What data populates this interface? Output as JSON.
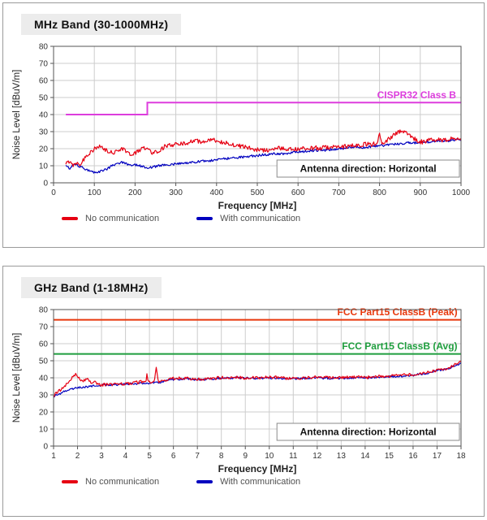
{
  "page": {
    "background": "#ffffff"
  },
  "chart_data": [
    {
      "type": "line",
      "title": "MHz Band (30-1000MHz)",
      "xlabel": "Frequency [MHz]",
      "ylabel": "Noise Level [dBuV/m]",
      "xlim": [
        0,
        1000
      ],
      "ylim": [
        0,
        80
      ],
      "xticks": [
        0,
        100,
        200,
        300,
        400,
        500,
        600,
        700,
        800,
        900,
        1000
      ],
      "yticks": [
        0,
        10,
        20,
        30,
        40,
        50,
        60,
        70,
        80
      ],
      "grid": true,
      "annotation": "Antenna direction: Horizontal",
      "limit_lines": [
        {
          "name": "CISPR32 Class B",
          "color": "#dd3ddd",
          "points": [
            [
              30,
              40
            ],
            [
              230,
              40
            ],
            [
              230,
              47
            ],
            [
              1000,
              47
            ]
          ],
          "label": {
            "text": "CISPR32 Class B",
            "x": 988,
            "y": 49.6,
            "anchor": "end"
          }
        }
      ],
      "series": [
        {
          "name": "No communication",
          "color": "#e60012",
          "noise": 1.3,
          "keypoints": [
            [
              30,
              11
            ],
            [
              40,
              13
            ],
            [
              48,
              10.5
            ],
            [
              55,
              12
            ],
            [
              65,
              11
            ],
            [
              75,
              14
            ],
            [
              85,
              17
            ],
            [
              95,
              19
            ],
            [
              105,
              20.5
            ],
            [
              115,
              21
            ],
            [
              125,
              19.5
            ],
            [
              135,
              18
            ],
            [
              145,
              17.5
            ],
            [
              155,
              19
            ],
            [
              165,
              20
            ],
            [
              175,
              19.5
            ],
            [
              185,
              17
            ],
            [
              195,
              16.5
            ],
            [
              205,
              18
            ],
            [
              215,
              20
            ],
            [
              225,
              20.5
            ],
            [
              235,
              19
            ],
            [
              245,
              17.5
            ],
            [
              255,
              18.5
            ],
            [
              265,
              20
            ],
            [
              275,
              21.5
            ],
            [
              290,
              22
            ],
            [
              305,
              22.5
            ],
            [
              320,
              23
            ],
            [
              335,
              24
            ],
            [
              350,
              24.5
            ],
            [
              365,
              24
            ],
            [
              380,
              24.5
            ],
            [
              395,
              25
            ],
            [
              410,
              24
            ],
            [
              425,
              23.5
            ],
            [
              440,
              22.5
            ],
            [
              455,
              21.5
            ],
            [
              470,
              21
            ],
            [
              485,
              20
            ],
            [
              500,
              19.5
            ],
            [
              515,
              19
            ],
            [
              530,
              19
            ],
            [
              548,
              19.5
            ],
            [
              553,
              22.5
            ],
            [
              558,
              20
            ],
            [
              570,
              19.5
            ],
            [
              585,
              19.5
            ],
            [
              600,
              20
            ],
            [
              620,
              20
            ],
            [
              640,
              20.5
            ],
            [
              660,
              20.5
            ],
            [
              680,
              21
            ],
            [
              700,
              21
            ],
            [
              720,
              21.5
            ],
            [
              740,
              22
            ],
            [
              760,
              22.5
            ],
            [
              780,
              22.5
            ],
            [
              795,
              23
            ],
            [
              800,
              29.5
            ],
            [
              805,
              23.5
            ],
            [
              815,
              24
            ],
            [
              825,
              26
            ],
            [
              835,
              28
            ],
            [
              845,
              29.5
            ],
            [
              855,
              30
            ],
            [
              865,
              29.5
            ],
            [
              875,
              28
            ],
            [
              885,
              26
            ],
            [
              895,
              24.5
            ],
            [
              905,
              24
            ],
            [
              915,
              24.5
            ],
            [
              925,
              25
            ],
            [
              940,
              25
            ],
            [
              955,
              25
            ],
            [
              970,
              25.5
            ],
            [
              985,
              26
            ],
            [
              1000,
              26
            ]
          ]
        },
        {
          "name": "With communication",
          "color": "#0000bf",
          "noise": 0.7,
          "keypoints": [
            [
              30,
              10
            ],
            [
              40,
              8.5
            ],
            [
              50,
              11
            ],
            [
              60,
              10
            ],
            [
              70,
              9
            ],
            [
              80,
              8
            ],
            [
              90,
              7
            ],
            [
              100,
              6
            ],
            [
              110,
              6
            ],
            [
              120,
              7
            ],
            [
              130,
              8
            ],
            [
              140,
              9.5
            ],
            [
              150,
              10.5
            ],
            [
              160,
              11.5
            ],
            [
              170,
              12
            ],
            [
              180,
              11
            ],
            [
              190,
              10.5
            ],
            [
              200,
              10.5
            ],
            [
              210,
              10
            ],
            [
              220,
              9.5
            ],
            [
              230,
              9
            ],
            [
              240,
              9
            ],
            [
              250,
              9.5
            ],
            [
              260,
              10
            ],
            [
              280,
              10.5
            ],
            [
              300,
              11
            ],
            [
              320,
              11.5
            ],
            [
              340,
              12
            ],
            [
              360,
              12.5
            ],
            [
              380,
              13
            ],
            [
              400,
              13.5
            ],
            [
              420,
              14
            ],
            [
              440,
              14.5
            ],
            [
              460,
              15
            ],
            [
              480,
              15.5
            ],
            [
              500,
              16
            ],
            [
              520,
              16.5
            ],
            [
              540,
              17
            ],
            [
              560,
              17
            ],
            [
              580,
              17.5
            ],
            [
              600,
              18
            ],
            [
              620,
              18.5
            ],
            [
              640,
              19
            ],
            [
              660,
              19
            ],
            [
              680,
              19.5
            ],
            [
              700,
              20
            ],
            [
              720,
              20.5
            ],
            [
              740,
              21
            ],
            [
              755,
              20.5
            ],
            [
              770,
              21
            ],
            [
              790,
              21.5
            ],
            [
              810,
              22
            ],
            [
              830,
              22.5
            ],
            [
              850,
              23
            ],
            [
              870,
              23.5
            ],
            [
              890,
              23.5
            ],
            [
              910,
              24
            ],
            [
              930,
              24
            ],
            [
              950,
              24.5
            ],
            [
              970,
              24.5
            ],
            [
              985,
              25
            ],
            [
              1000,
              25.5
            ]
          ]
        }
      ],
      "legend": [
        {
          "label": "No communication",
          "color": "#e60012"
        },
        {
          "label": "With communication",
          "color": "#0000bf"
        }
      ]
    },
    {
      "type": "line",
      "title": "GHz Band (1-18MHz)",
      "xlabel": "Frequency [MHz]",
      "ylabel": "Noise Level [dBuV/m]",
      "xlim": [
        1,
        18
      ],
      "ylim": [
        0,
        80
      ],
      "xticks": [
        1,
        2,
        3,
        4,
        5,
        6,
        7,
        8,
        9,
        10,
        11,
        12,
        13,
        14,
        15,
        16,
        17,
        18
      ],
      "yticks": [
        0,
        10,
        20,
        30,
        40,
        50,
        60,
        70,
        80
      ],
      "grid": true,
      "annotation": "Antenna direction: Horizontal",
      "limit_lines": [
        {
          "name": "FCC Part15 ClassB (Peak)",
          "color": "#e8380c",
          "points": [
            [
              1,
              74
            ],
            [
              18,
              74
            ]
          ],
          "label": {
            "text": "FCC Part15 ClassB (Peak)",
            "x": 17.85,
            "y": 76.6,
            "anchor": "end"
          }
        },
        {
          "name": "FCC Part15 ClassB (Avg)",
          "color": "#1f9e3e",
          "points": [
            [
              1,
              54
            ],
            [
              18,
              54
            ]
          ],
          "label": {
            "text": "FCC Part15 ClassB (Avg)",
            "x": 17.85,
            "y": 56.6,
            "anchor": "end"
          }
        }
      ],
      "series": [
        {
          "name": "No communication",
          "color": "#e60012",
          "noise": 0.9,
          "keypoints": [
            [
              1,
              29.5
            ],
            [
              1.2,
              32
            ],
            [
              1.4,
              34
            ],
            [
              1.6,
              37
            ],
            [
              1.8,
              41
            ],
            [
              1.95,
              42
            ],
            [
              2.1,
              39
            ],
            [
              2.25,
              38
            ],
            [
              2.4,
              39.5
            ],
            [
              2.55,
              37
            ],
            [
              2.7,
              37.5
            ],
            [
              2.9,
              36
            ],
            [
              3.2,
              36
            ],
            [
              3.6,
              36.5
            ],
            [
              4,
              36.5
            ],
            [
              4.3,
              37
            ],
            [
              4.55,
              37.5
            ],
            [
              4.85,
              38
            ],
            [
              4.9,
              42
            ],
            [
              4.95,
              37.5
            ],
            [
              5.2,
              38
            ],
            [
              5.28,
              46
            ],
            [
              5.36,
              38
            ],
            [
              5.7,
              38.5
            ],
            [
              6,
              39.5
            ],
            [
              6.5,
              40
            ],
            [
              7,
              39
            ],
            [
              7.5,
              39.5
            ],
            [
              8,
              40
            ],
            [
              8.5,
              40.5
            ],
            [
              9,
              40
            ],
            [
              9.5,
              40
            ],
            [
              10,
              40.5
            ],
            [
              10.5,
              40
            ],
            [
              11,
              39.5
            ],
            [
              11.5,
              40
            ],
            [
              12,
              40.5
            ],
            [
              12.5,
              40
            ],
            [
              13,
              40
            ],
            [
              13.5,
              40.5
            ],
            [
              14,
              40
            ],
            [
              14.5,
              41
            ],
            [
              15,
              41
            ],
            [
              15.5,
              41.5
            ],
            [
              16,
              42
            ],
            [
              16.5,
              43
            ],
            [
              17,
              44.5
            ],
            [
              17.5,
              46
            ],
            [
              18,
              49.5
            ]
          ]
        },
        {
          "name": "With communication",
          "color": "#0000bf",
          "noise": 0.6,
          "keypoints": [
            [
              1,
              29
            ],
            [
              1.3,
              31
            ],
            [
              1.6,
              33
            ],
            [
              1.9,
              34
            ],
            [
              2.2,
              34.5
            ],
            [
              2.5,
              35
            ],
            [
              2.8,
              35.5
            ],
            [
              3.2,
              35.8
            ],
            [
              3.6,
              36
            ],
            [
              4,
              36.3
            ],
            [
              4.5,
              36.6
            ],
            [
              5,
              37
            ],
            [
              5.5,
              37.5
            ],
            [
              6,
              39
            ],
            [
              6.5,
              39.5
            ],
            [
              7,
              39
            ],
            [
              7.5,
              39.3
            ],
            [
              8,
              39.8
            ],
            [
              8.5,
              40
            ],
            [
              9,
              39.8
            ],
            [
              9.5,
              39.8
            ],
            [
              10,
              40
            ],
            [
              10.5,
              39.8
            ],
            [
              11,
              39.5
            ],
            [
              11.5,
              39.8
            ],
            [
              12,
              40
            ],
            [
              12.5,
              39.8
            ],
            [
              13,
              39.8
            ],
            [
              13.5,
              40
            ],
            [
              14,
              40
            ],
            [
              14.5,
              40.5
            ],
            [
              15,
              40.8
            ],
            [
              15.5,
              41
            ],
            [
              16,
              41.5
            ],
            [
              16.5,
              42.5
            ],
            [
              17,
              44
            ],
            [
              17.5,
              45.5
            ],
            [
              18,
              48.5
            ]
          ]
        }
      ],
      "legend": [
        {
          "label": "No communication",
          "color": "#e60012"
        },
        {
          "label": "With communication",
          "color": "#0000bf"
        }
      ]
    }
  ]
}
